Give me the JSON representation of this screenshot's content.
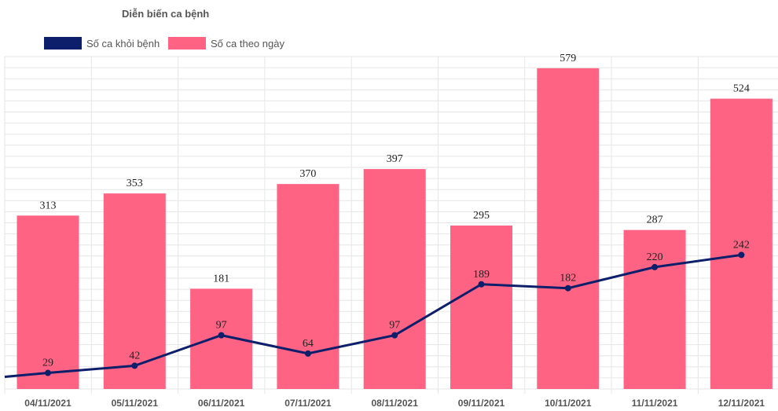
{
  "chart_data": {
    "type": "bar",
    "title": "Diễn biến ca bệnh",
    "categories": [
      "04/11/2021",
      "05/11/2021",
      "06/11/2021",
      "07/11/2021",
      "08/11/2021",
      "09/11/2021",
      "10/11/2021",
      "11/11/2021",
      "12/11/2021"
    ],
    "series": [
      {
        "name": "Số ca khỏi bệnh",
        "type": "line",
        "color": "#0d1f6b",
        "values": [
          29,
          42,
          97,
          64,
          97,
          189,
          182,
          220,
          242
        ],
        "first_point_before_window": 22
      },
      {
        "name": "Số ca theo ngày",
        "type": "bar",
        "color": "#ff6384",
        "values": [
          313,
          353,
          181,
          370,
          397,
          295,
          579,
          287,
          524
        ]
      }
    ],
    "ylim": [
      0,
      600
    ],
    "grid": true,
    "legend_position": "top-left",
    "data_labels": true
  }
}
